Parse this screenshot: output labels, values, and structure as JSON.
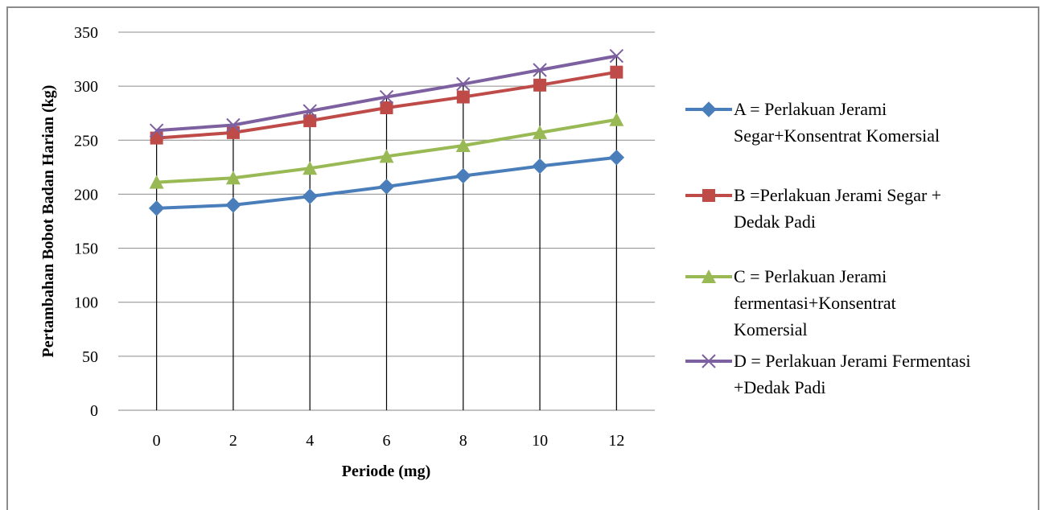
{
  "chart_data": {
    "type": "line",
    "xlabel": "Periode (mg)",
    "ylabel": "Pertambahan Bobot Badan Harian (kg)",
    "x": [
      0,
      2,
      4,
      6,
      8,
      10,
      12
    ],
    "ylim": [
      0,
      350
    ],
    "yticks": [
      0,
      50,
      100,
      150,
      200,
      250,
      300,
      350
    ],
    "grid": "horizontal",
    "drop_lines": true,
    "legend_position": "right",
    "series": [
      {
        "name": "A = Perlakuan Jerami Segar+Konsentrat Komersial",
        "legend_lines": [
          "A = Perlakuan Jerami",
          "Segar+Konsentrat Komersial"
        ],
        "color": "#4a7ebb",
        "marker": "diamond",
        "values": [
          187,
          190,
          198,
          207,
          217,
          226,
          234
        ]
      },
      {
        "name": "B =Perlakuan Jerami Segar + Dedak Padi",
        "legend_lines": [
          "B =Perlakuan Jerami Segar +",
          "Dedak Padi"
        ],
        "color": "#be4b48",
        "marker": "square",
        "values": [
          252,
          257,
          268,
          280,
          290,
          301,
          313
        ]
      },
      {
        "name": "C = Perlakuan Jerami fermentasi+Konsentrat Komersial",
        "legend_lines": [
          "C = Perlakuan Jerami",
          "fermentasi+Konsentrat",
          "Komersial"
        ],
        "color": "#98b954",
        "marker": "triangle",
        "values": [
          211,
          215,
          224,
          235,
          245,
          257,
          269
        ]
      },
      {
        "name": "D = Perlakuan Jerami Fermentasi +Dedak Padi",
        "legend_lines": [
          "D = Perlakuan Jerami Fermentasi",
          "+Dedak Padi"
        ],
        "color": "#7d60a0",
        "marker": "x",
        "values": [
          259,
          264,
          277,
          290,
          302,
          315,
          328
        ]
      }
    ]
  }
}
